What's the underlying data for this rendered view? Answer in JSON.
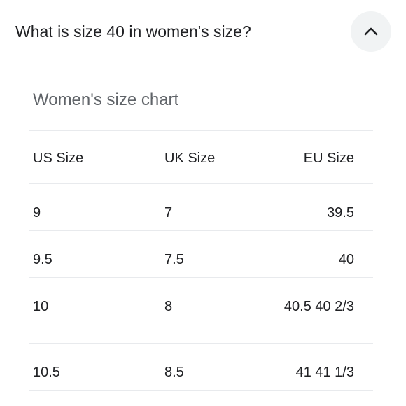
{
  "question": "What is size 40 in women's size?",
  "toggle": {
    "icon": "chevron-up-icon"
  },
  "chart_title": "Women's size chart",
  "table": {
    "headers": [
      "US Size",
      "UK Size",
      "EU Size"
    ],
    "rows": [
      [
        "9",
        "7",
        "39.5"
      ],
      [
        "9.5",
        "7.5",
        "40"
      ],
      [
        "10",
        "8",
        "40.5 40 2/3"
      ],
      [
        "10.5",
        "8.5",
        "41 41 1/3"
      ]
    ]
  }
}
